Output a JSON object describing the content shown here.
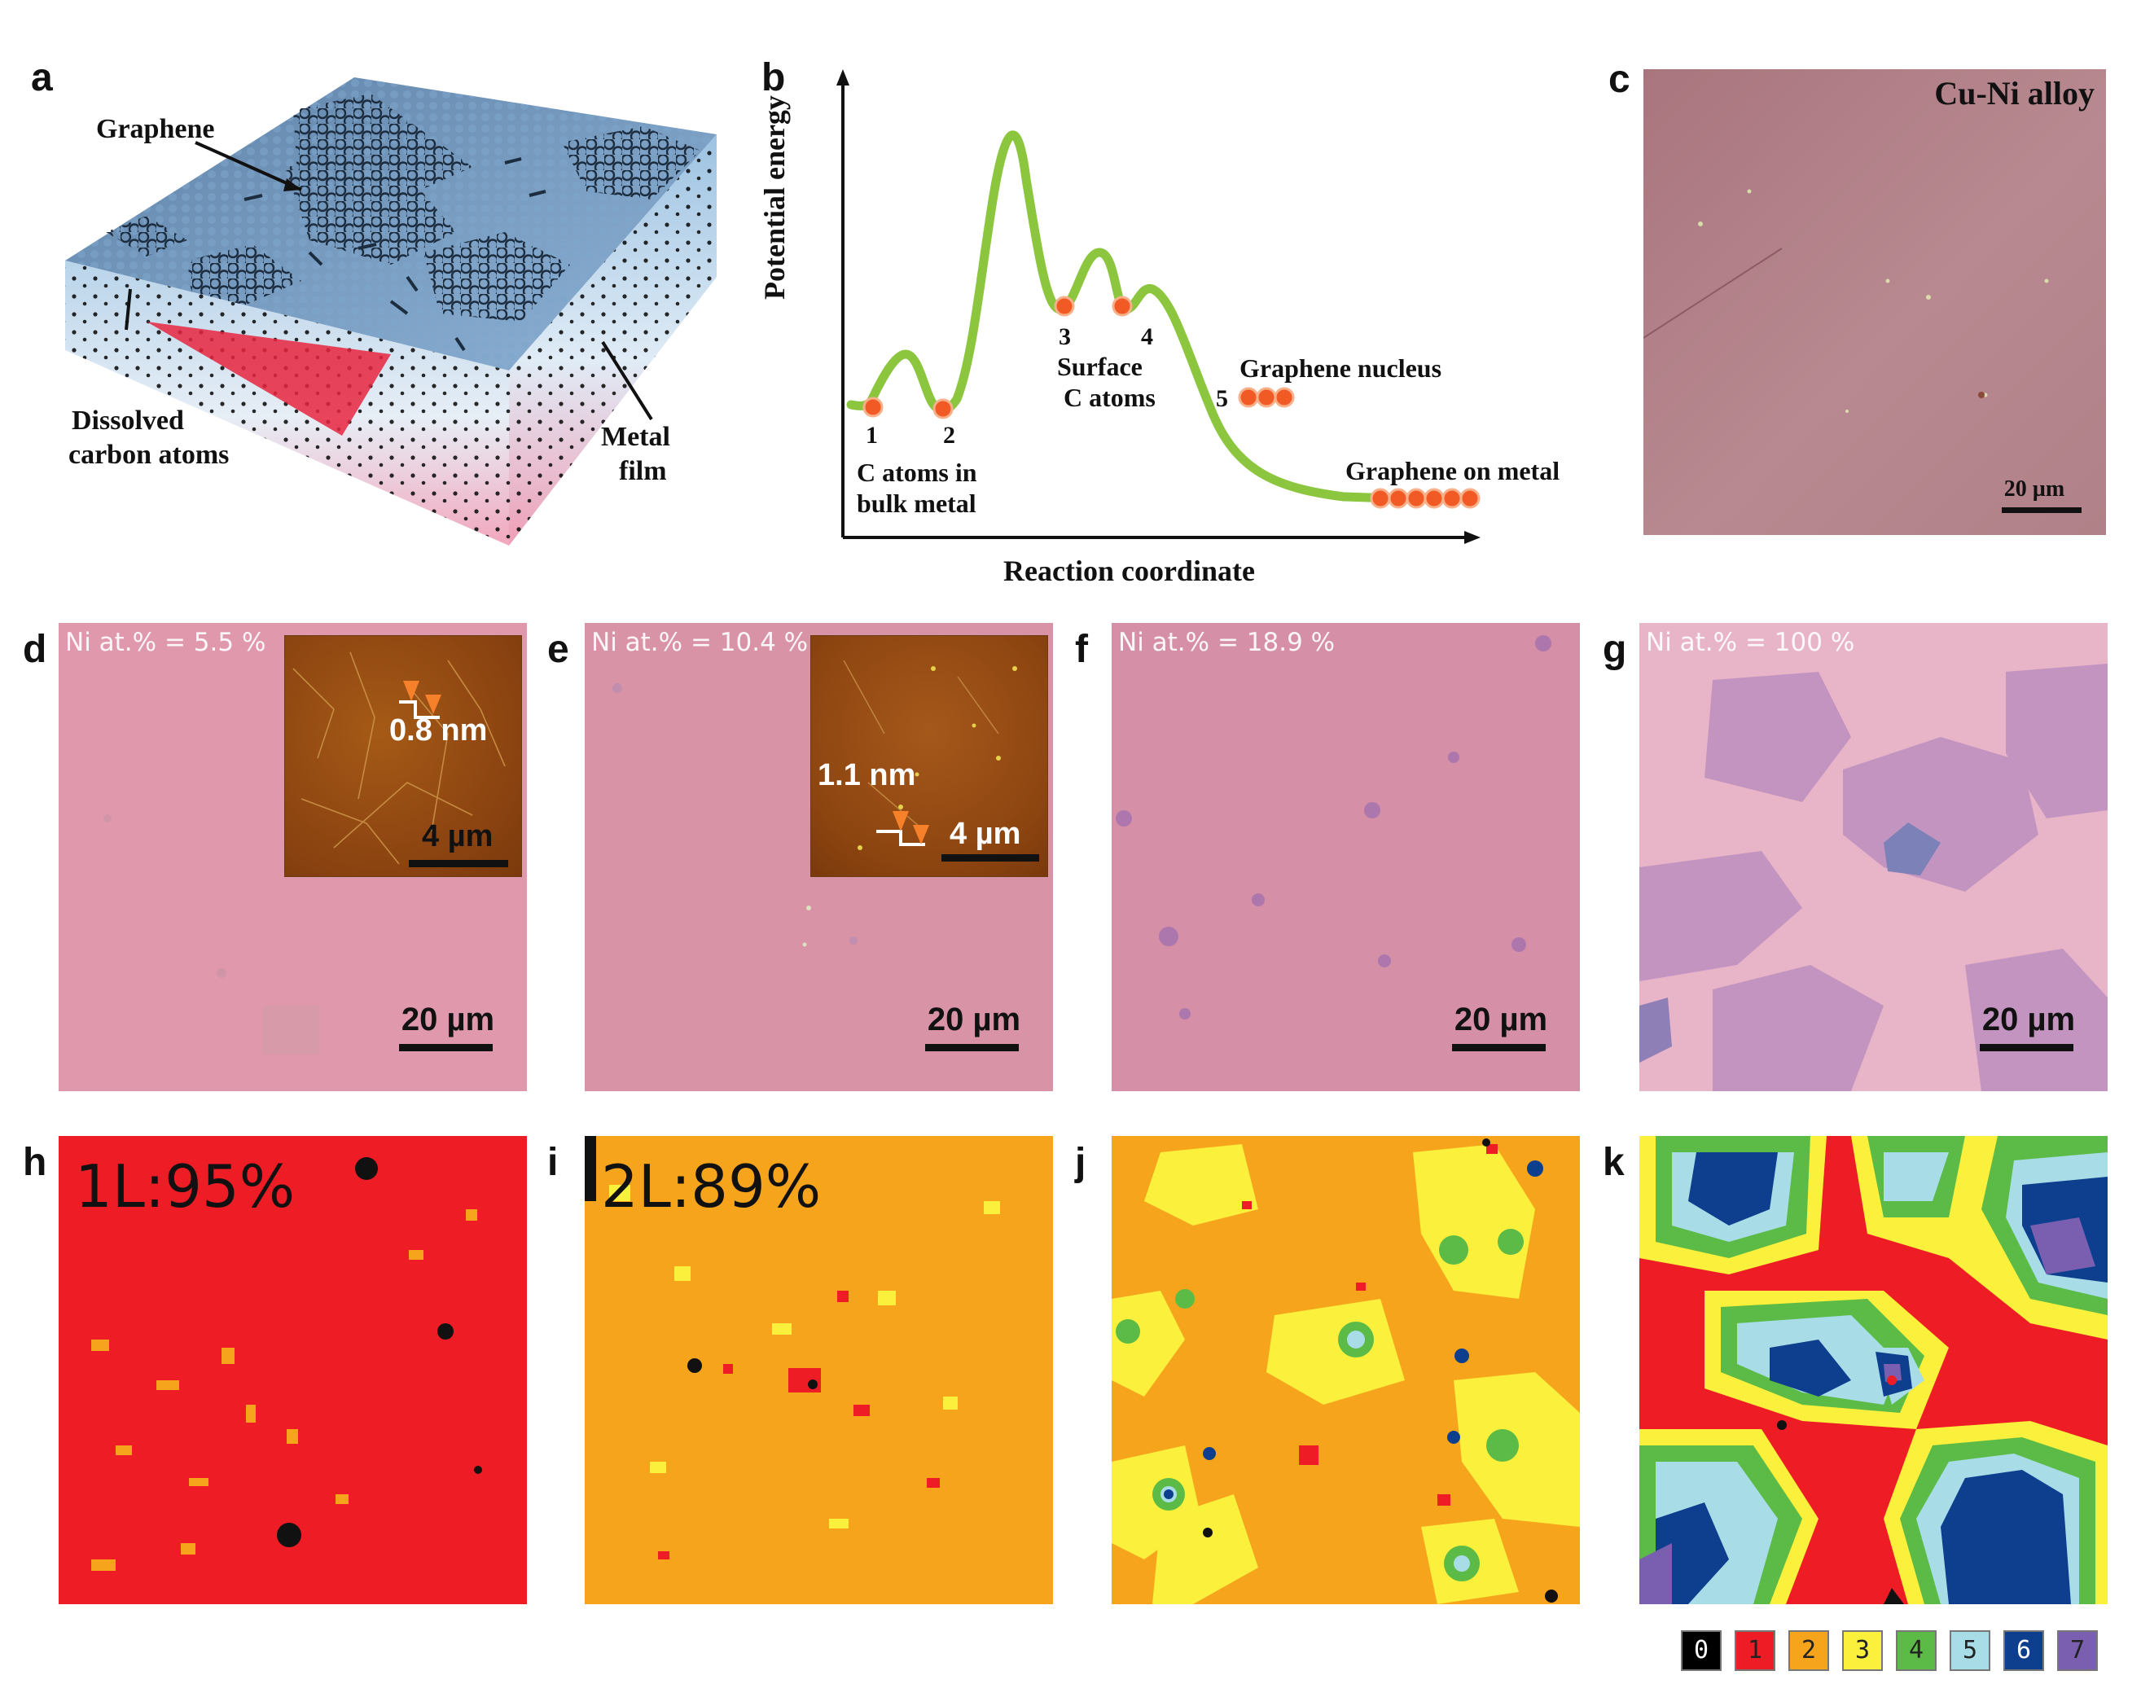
{
  "panels": {
    "a": {
      "letter": "a",
      "labels": {
        "graphene": "Graphene",
        "dissolved_line1": "Dissolved",
        "dissolved_line2": "carbon atoms",
        "metal_line1": "Metal",
        "metal_line2": "film"
      }
    },
    "b": {
      "letter": "b",
      "ylabel": "Potential energy",
      "xlabel": "Reaction coordinate",
      "points": [
        "1",
        "2",
        "3",
        "4",
        "5"
      ],
      "text": {
        "bulk_line1": "C atoms in",
        "bulk_line2": "bulk metal",
        "surface_line1": "Surface",
        "surface_line2": "C atoms",
        "nucleus": "Graphene nucleus",
        "on_metal": "Graphene on metal"
      }
    },
    "c": {
      "letter": "c",
      "title": "Cu-Ni alloy",
      "scalebar": "20 µm"
    },
    "d": {
      "letter": "d",
      "label": "Ni at.% = 5.5 %",
      "scalebar": "20 µm",
      "inset_step": "0.8 nm",
      "inset_scalebar": "4 µm"
    },
    "e": {
      "letter": "e",
      "label": "Ni at.% = 10.4 %",
      "scalebar": "20 µm",
      "inset_step": "1.1 nm",
      "inset_scalebar": "4 µm"
    },
    "f": {
      "letter": "f",
      "label": "Ni at.% = 18.9 %",
      "scalebar": "20 µm"
    },
    "g": {
      "letter": "g",
      "label": "Ni at.% = 100 %",
      "scalebar": "20 µm"
    },
    "h": {
      "letter": "h",
      "coverage": "1L:95%"
    },
    "i": {
      "letter": "i",
      "coverage": "2L:89%"
    },
    "j": {
      "letter": "j"
    },
    "k": {
      "letter": "k"
    }
  },
  "legend": [
    {
      "label": "0",
      "color": "#000000"
    },
    {
      "label": "1",
      "color": "#ee1c25"
    },
    {
      "label": "2",
      "color": "#f7a41d"
    },
    {
      "label": "3",
      "color": "#fbf03c"
    },
    {
      "label": "4",
      "color": "#5cbb46"
    },
    {
      "label": "5",
      "color": "#a8dde8"
    },
    {
      "label": "6",
      "color": "#0e3f8f"
    },
    {
      "label": "7",
      "color": "#7a5fb0"
    }
  ]
}
